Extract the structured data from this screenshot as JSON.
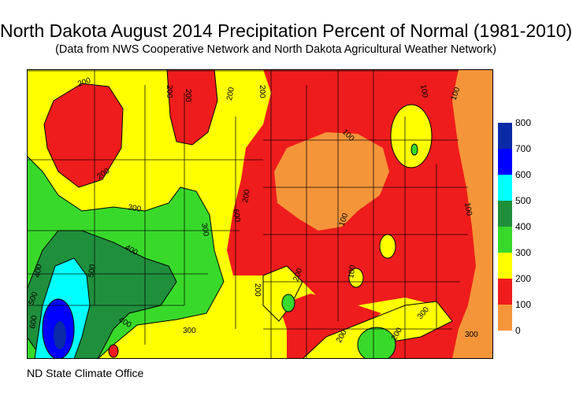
{
  "title": "North Dakota August 2014 Precipitation Percent of Normal (1981-2010)",
  "subtitle": "(Data from NWS Cooperative Network and North Dakota Agricultural Weather Network)",
  "credit": "ND State Climate Office",
  "colors": {
    "0-100": "#f5953a",
    "100-200": "#ee1c1c",
    "200-300": "#ffff00",
    "300-400": "#38d92a",
    "400-500": "#1f8f3c",
    "500-600": "#00ffff",
    "600-700": "#0000ff",
    "700-800": "#0b2aa6"
  },
  "legend": {
    "ticks": [
      "800",
      "700",
      "600",
      "500",
      "400",
      "300",
      "200",
      "100",
      "0"
    ],
    "bins": [
      {
        "range": "700-800",
        "color": "#0b2aa6"
      },
      {
        "range": "600-700",
        "color": "#0000ff"
      },
      {
        "range": "500-600",
        "color": "#00ffff"
      },
      {
        "range": "400-500",
        "color": "#1f8f3c"
      },
      {
        "range": "300-400",
        "color": "#38d92a"
      },
      {
        "range": "200-300",
        "color": "#ffff00"
      },
      {
        "range": "100-200",
        "color": "#ee1c1c"
      },
      {
        "range": "0-100",
        "color": "#f5953a"
      }
    ]
  },
  "contour_labels": [
    "200",
    "200",
    "200",
    "200",
    "200",
    "100",
    "100",
    "100",
    "100",
    "200",
    "200",
    "300",
    "300",
    "300",
    "400",
    "400",
    "400",
    "500",
    "500",
    "600",
    "600",
    "200",
    "200",
    "200",
    "300",
    "300",
    "200",
    "100",
    "100"
  ]
}
